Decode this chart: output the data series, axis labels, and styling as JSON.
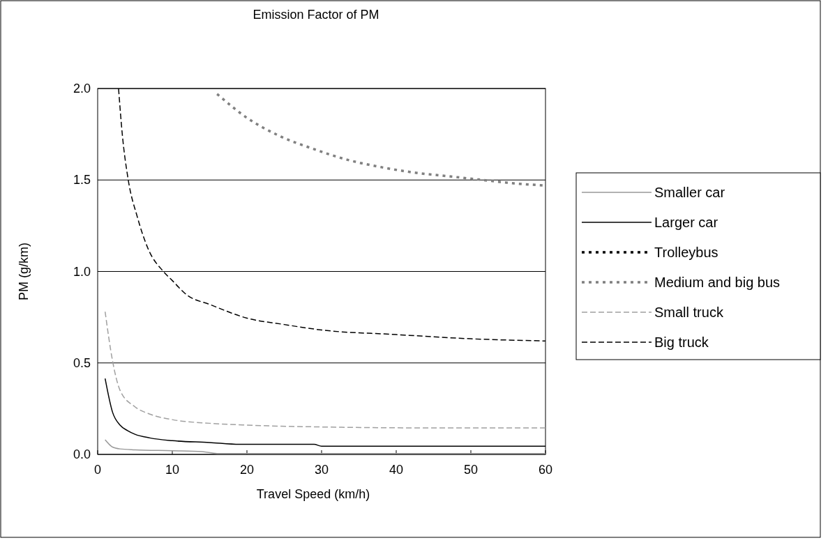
{
  "chart_data": {
    "type": "line",
    "title": "Emission Factor of PM",
    "xlabel": "Travel Speed (km/h)",
    "ylabel": "PM (g/km)",
    "xlim": [
      0,
      60
    ],
    "xticks": [
      0,
      10,
      20,
      30,
      40,
      50,
      60
    ],
    "ylim": [
      0,
      2
    ],
    "yticks": [
      {
        "value": 0,
        "label": "0.0"
      },
      {
        "value": 0.5,
        "label": "0.5"
      },
      {
        "value": 1,
        "label": "1.0"
      },
      {
        "value": 1.5,
        "label": "1.5"
      },
      {
        "value": 2,
        "label": "2.0"
      }
    ],
    "grid": "y",
    "legend": "right",
    "marker": "none",
    "series": [
      {
        "name": "Smaller car",
        "color": "#999999",
        "line_style": "solid",
        "x": [
          1,
          2,
          3,
          5,
          10,
          14,
          16,
          60
        ],
        "values": [
          0.08,
          0.04,
          0.03,
          0.025,
          0.02,
          0.015,
          0.005,
          0.005
        ]
      },
      {
        "name": "Larger car",
        "color": "#000000",
        "line_style": "solid",
        "x": [
          1,
          2,
          3,
          4,
          5,
          7,
          10,
          15,
          19,
          29,
          30,
          60
        ],
        "values": [
          0.415,
          0.23,
          0.16,
          0.13,
          0.11,
          0.09,
          0.075,
          0.065,
          0.055,
          0.055,
          0.045,
          0.045
        ]
      },
      {
        "name": "Trolleybus",
        "color": "#000000",
        "line_style": "dotted"
      },
      {
        "name": "Medium and big bus",
        "color": "#808080",
        "line_style": "dotted",
        "x": [
          16,
          20,
          24.4,
          28.9,
          33.5,
          38,
          42.5,
          47.1,
          51.6,
          56.2,
          60
        ],
        "values": [
          1.97,
          1.84,
          1.74,
          1.67,
          1.61,
          1.57,
          1.54,
          1.52,
          1.5,
          1.48,
          1.47
        ]
      },
      {
        "name": "Small truck",
        "color": "#a0a0a0",
        "line_style": "dashed",
        "x": [
          1,
          2,
          2.5,
          3,
          5,
          7,
          10,
          15,
          20,
          30,
          44,
          60
        ],
        "values": [
          0.78,
          0.51,
          0.415,
          0.35,
          0.26,
          0.22,
          0.19,
          0.17,
          0.16,
          0.15,
          0.145,
          0.145
        ]
      },
      {
        "name": "Big truck",
        "color": "#000000",
        "line_style": "dashed",
        "x": [
          2.8,
          3.3,
          4.1,
          5.3,
          6.8,
          8.8,
          10,
          12,
          15,
          20,
          25,
          30,
          40,
          50,
          60
        ],
        "values": [
          2.0,
          1.75,
          1.5,
          1.3,
          1.12,
          1.0,
          0.95,
          0.87,
          0.82,
          0.745,
          0.71,
          0.68,
          0.655,
          0.632,
          0.62
        ]
      }
    ]
  }
}
